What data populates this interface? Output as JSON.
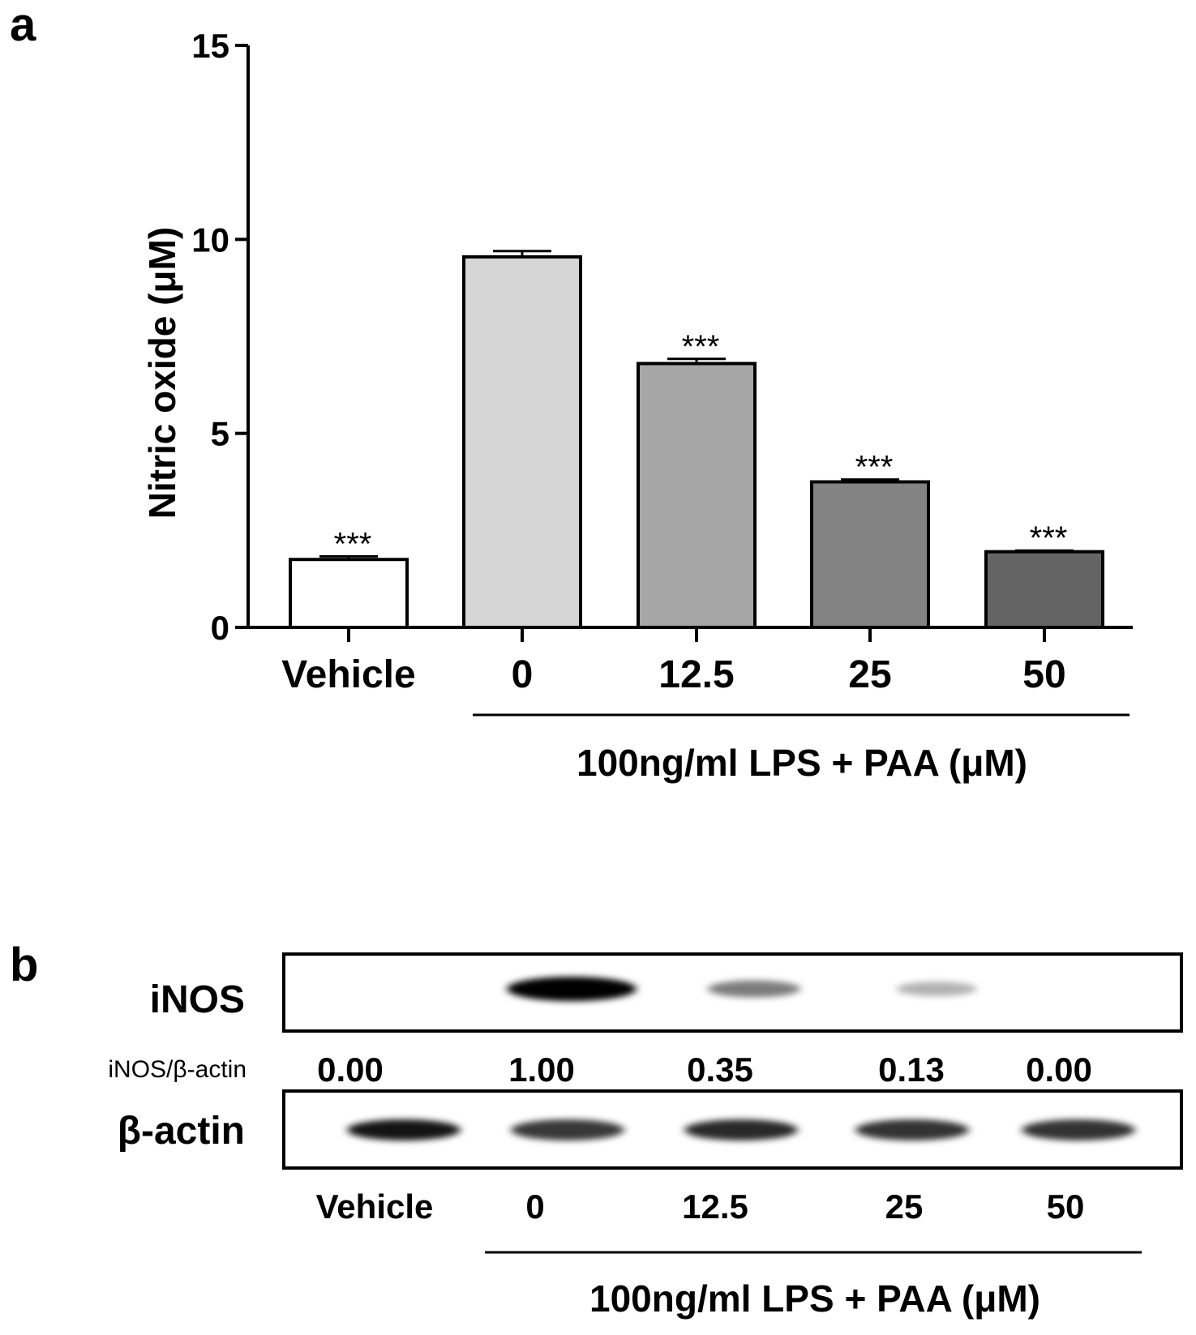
{
  "panel_a": {
    "label": "a",
    "chart_data": {
      "type": "bar",
      "title": "",
      "ylabel": "Nitric oxide (μM)",
      "xlabel": "100ng/ml LPS + PAA (μM)",
      "ylim": [
        0,
        15
      ],
      "yticks": [
        "0",
        "5",
        "10",
        "15"
      ],
      "ytick_values": [
        0,
        5,
        10,
        15
      ],
      "categories": [
        "Vehicle",
        "0",
        "12.5",
        "25",
        "50"
      ],
      "values": [
        1.75,
        9.55,
        6.8,
        3.75,
        1.95
      ],
      "errors": [
        0.08,
        0.15,
        0.12,
        0.06,
        0.03
      ],
      "significance": [
        "***",
        "",
        "***",
        "***",
        "***"
      ],
      "bar_colors": [
        "#ffffff",
        "#d6d6d6",
        "#a6a6a6",
        "#838383",
        "#646464"
      ],
      "grid": false
    }
  },
  "panel_b": {
    "label": "b",
    "blot_labels": {
      "inos": "iNOS",
      "ratio": "iNOS/β-actin",
      "actin": "β-actin"
    },
    "ratios": [
      "0.00",
      "1.00",
      "0.35",
      "0.13",
      "0.00"
    ],
    "lanes": [
      "Vehicle",
      "0",
      "12.5",
      "25",
      "50"
    ],
    "treatment_label": "100ng/ml LPS + PAA (μM)",
    "inos_intensity": [
      0.0,
      1.0,
      0.35,
      0.13,
      0.0
    ],
    "actin_intensity": [
      0.92,
      0.78,
      0.84,
      0.8,
      0.8
    ]
  }
}
